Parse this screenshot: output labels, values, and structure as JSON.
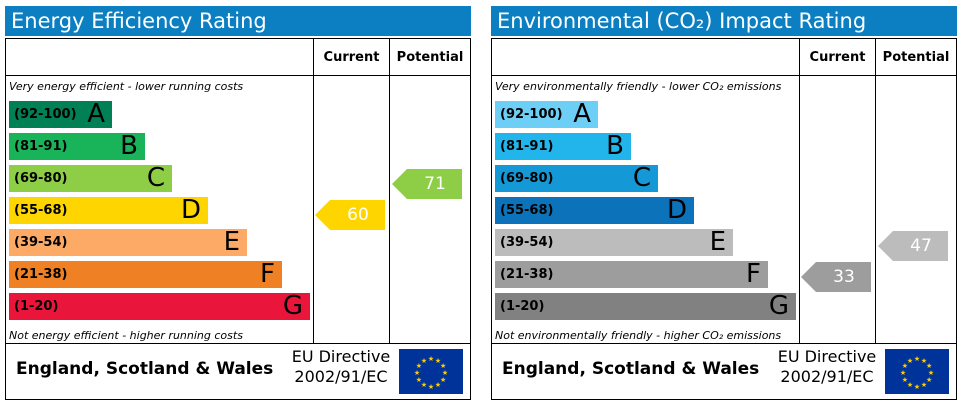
{
  "chart_data": [
    {
      "type": "bar",
      "title": "Energy Efficiency Rating",
      "columns": [
        "Current",
        "Potential"
      ],
      "caption_top": "Very energy efficient - lower running costs",
      "caption_bottom": "Not energy efficient - higher running costs",
      "categories": [
        "A",
        "B",
        "C",
        "D",
        "E",
        "F",
        "G"
      ],
      "ranges": [
        "(92-100)",
        "(81-91)",
        "(69-80)",
        "(55-68)",
        "(39-54)",
        "(21-38)",
        "(1-20)"
      ],
      "colors": [
        "#008054",
        "#19b459",
        "#8dce46",
        "#ffd500",
        "#fcaa65",
        "#ef8023",
        "#e9153b"
      ],
      "range_text_colors": [
        "#000000",
        "#000000",
        "#000000",
        "#000000",
        "#000000",
        "#000000",
        "#000000"
      ],
      "current": 60,
      "potential": 71,
      "current_color": "#ffd500",
      "potential_color": "#8dce46",
      "region": "England, Scotland & Wales",
      "directive": [
        "EU Directive",
        "2002/91/EC"
      ]
    },
    {
      "type": "bar",
      "title": "Environmental (CO₂) Impact Rating",
      "columns": [
        "Current",
        "Potential"
      ],
      "caption_top": "Very environmentally friendly - lower CO₂ emissions",
      "caption_bottom": "Not environmentally friendly - higher CO₂ emissions",
      "categories": [
        "A",
        "B",
        "C",
        "D",
        "E",
        "F",
        "G"
      ],
      "ranges": [
        "(92-100)",
        "(81-91)",
        "(69-80)",
        "(55-68)",
        "(39-54)",
        "(21-38)",
        "(1-20)"
      ],
      "colors": [
        "#6ecff6",
        "#22b5eb",
        "#1499d6",
        "#0c72b9",
        "#bcbcbc",
        "#9d9d9d",
        "#818181"
      ],
      "range_text_colors": [
        "#000000",
        "#000000",
        "#000000",
        "#000000",
        "#000000",
        "#000000",
        "#000000"
      ],
      "current": 33,
      "potential": 47,
      "current_color": "#9d9d9d",
      "potential_color": "#bcbcbc",
      "region": "England, Scotland & Wales",
      "directive": [
        "EU Directive",
        "2002/91/EC"
      ]
    }
  ]
}
